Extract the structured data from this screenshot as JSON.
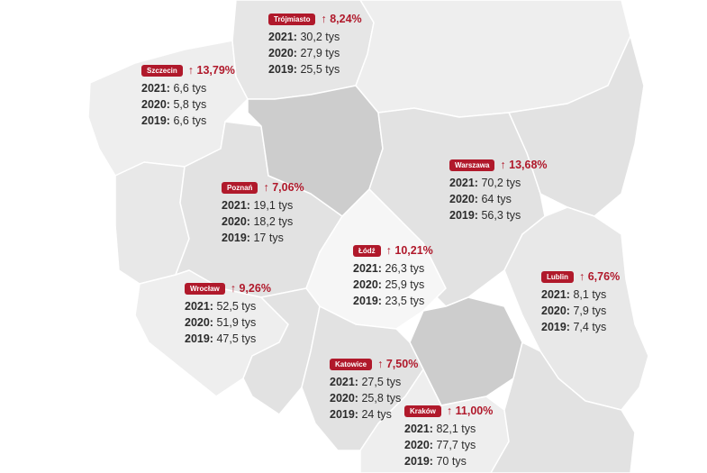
{
  "colors": {
    "accent": "#b0192b",
    "text": "#2b2b2b",
    "region_light": "#eeeeee",
    "region_medium": "#e2e2e2",
    "region_dark": "#cdcdcd",
    "region_white": "#f6f6f6"
  },
  "icons": {
    "change": "arrow-up-icon"
  },
  "cities": [
    {
      "name": "Trójmiasto",
      "change": "8,24%",
      "rows": [
        {
          "year": "2021:",
          "value": "30,2 tys"
        },
        {
          "year": "2020:",
          "value": "27,9 tys"
        },
        {
          "year": "2019:",
          "value": "25,5 tys"
        }
      ]
    },
    {
      "name": "Szczecin",
      "change": "13,79%",
      "rows": [
        {
          "year": "2021:",
          "value": "6,6 tys"
        },
        {
          "year": "2020:",
          "value": "5,8 tys"
        },
        {
          "year": "2019:",
          "value": "6,6 tys"
        }
      ]
    },
    {
      "name": "Warszawa",
      "change": "13,68%",
      "rows": [
        {
          "year": "2021:",
          "value": "70,2 tys"
        },
        {
          "year": "2020:",
          "value": "64 tys"
        },
        {
          "year": "2019:",
          "value": "56,3 tys"
        }
      ]
    },
    {
      "name": "Poznań",
      "change": "7,06%",
      "rows": [
        {
          "year": "2021:",
          "value": "19,1 tys"
        },
        {
          "year": "2020:",
          "value": "18,2 tys"
        },
        {
          "year": "2019:",
          "value": "17 tys"
        }
      ]
    },
    {
      "name": "Łódź",
      "change": "10,21%",
      "rows": [
        {
          "year": "2021:",
          "value": "26,3 tys"
        },
        {
          "year": "2020:",
          "value": "25,9 tys"
        },
        {
          "year": "2019:",
          "value": "23,5  tys"
        }
      ]
    },
    {
      "name": "Wrocław",
      "change": "9,26%",
      "rows": [
        {
          "year": "2021:",
          "value": "52,5 tys"
        },
        {
          "year": "2020:",
          "value": "51,9 tys"
        },
        {
          "year": "2019:",
          "value": "47,5 tys"
        }
      ]
    },
    {
      "name": "Lublin",
      "change": "6,76%",
      "rows": [
        {
          "year": "2021:",
          "value": "8,1 tys"
        },
        {
          "year": "2020:",
          "value": "7,9 tys"
        },
        {
          "year": "2019:",
          "value": "7,4 tys"
        }
      ]
    },
    {
      "name": "Katowice",
      "change": "7,50%",
      "rows": [
        {
          "year": "2021:",
          "value": "27,5 tys"
        },
        {
          "year": "2020:",
          "value": "25,8 tys"
        },
        {
          "year": "2019:",
          "value": "24 tys"
        }
      ]
    },
    {
      "name": "Kraków",
      "change": "11,00%",
      "rows": [
        {
          "year": "2021:",
          "value": "82,1 tys"
        },
        {
          "year": "2020:",
          "value": "77,7 tys"
        },
        {
          "year": "2019:",
          "value": "70 tys"
        }
      ]
    }
  ]
}
